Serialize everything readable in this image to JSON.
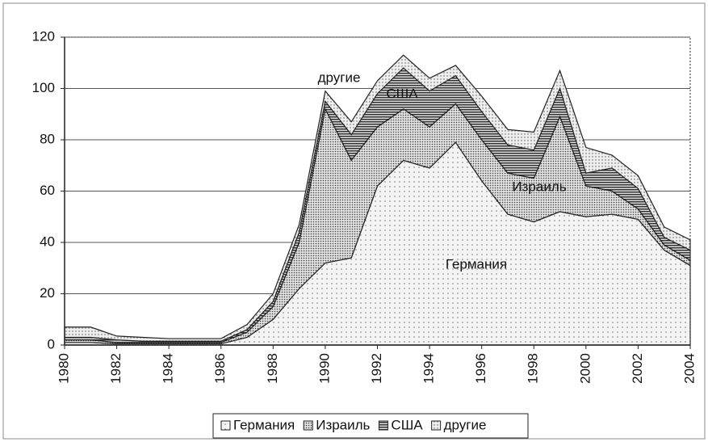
{
  "chart_data": {
    "type": "stacked_area",
    "x": [
      1980,
      1981,
      1982,
      1983,
      1984,
      1985,
      1986,
      1987,
      1988,
      1989,
      1990,
      1991,
      1992,
      1993,
      1994,
      1995,
      1996,
      1997,
      1998,
      1999,
      2000,
      2001,
      2002,
      2003,
      2004
    ],
    "xlim": [
      1980,
      2004
    ],
    "xticks": [
      1980,
      1982,
      1984,
      1986,
      1988,
      1990,
      1992,
      1994,
      1996,
      1998,
      2000,
      2002,
      2004
    ],
    "ylim": [
      0,
      120
    ],
    "yticks": [
      0,
      20,
      40,
      60,
      80,
      100,
      120
    ],
    "grid": true,
    "series": [
      {
        "name": "Германия",
        "color": "#ececec",
        "values": [
          1,
          1,
          0.5,
          0.5,
          0.5,
          0.5,
          0.5,
          3,
          10,
          22,
          32,
          34,
          62,
          72,
          69,
          79,
          64,
          51,
          48,
          52,
          50,
          51,
          49,
          37,
          31
        ]
      },
      {
        "name": "Израиль",
        "color": "#c4c4c4",
        "values": [
          1,
          1,
          0.5,
          0.5,
          0.5,
          0.5,
          0.5,
          2,
          5,
          18,
          60,
          38,
          23,
          20,
          16,
          15,
          16,
          16,
          17,
          37,
          12,
          9,
          4,
          2,
          2
        ]
      },
      {
        "name": "США",
        "color": "#6a6a6a",
        "values": [
          1,
          1,
          1,
          0.5,
          0.5,
          0.5,
          0.5,
          1,
          2,
          4,
          3,
          10,
          13,
          16,
          14,
          11,
          11,
          11,
          11,
          11,
          5,
          9,
          8,
          3,
          4
        ]
      },
      {
        "name": "другие",
        "color": "#dadada",
        "values": [
          4,
          4,
          1.5,
          1.5,
          1,
          1,
          1,
          2,
          3,
          3,
          4,
          5,
          5,
          5,
          5,
          4,
          6,
          6,
          7,
          7,
          10,
          5,
          5,
          4,
          4
        ]
      }
    ],
    "annotations": [
      "другие",
      "США",
      "Израиль",
      "Германия"
    ],
    "legend": "bottom"
  }
}
